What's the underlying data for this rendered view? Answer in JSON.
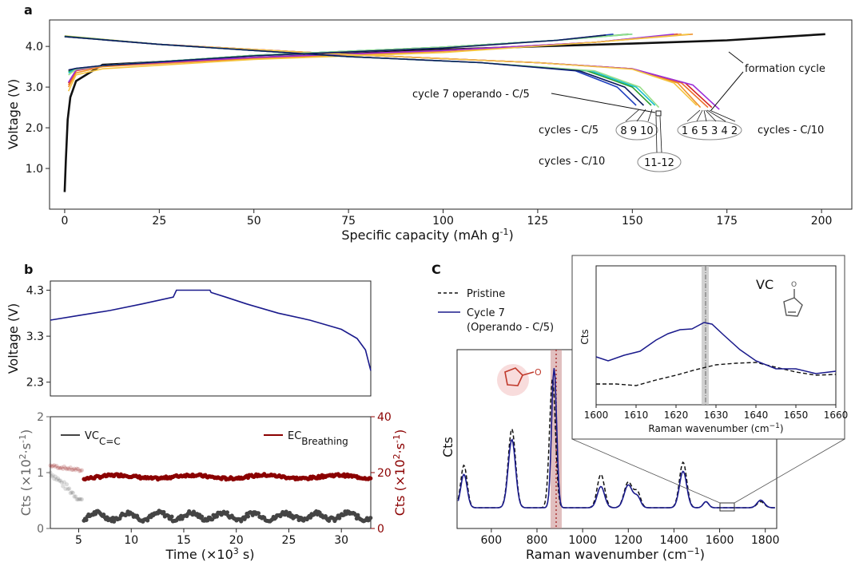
{
  "chart_data": [
    {
      "panel": "a",
      "type": "line",
      "xlabel": "Specific capacity (mAh g",
      "xlabel_sup": "-1",
      "xlabel_suffix": ")",
      "ylabel": "Voltage (V)",
      "xlim": [
        -4,
        208
      ],
      "ylim": [
        0.0,
        4.65
      ],
      "xticks": [
        0,
        25,
        50,
        75,
        100,
        125,
        150,
        175,
        200
      ],
      "yticks": [
        1.0,
        2.0,
        3.0,
        4.0
      ],
      "yticklabels": [
        "1.0",
        "2.0",
        "3.0",
        "4.0"
      ],
      "annotations": {
        "formation": "formation cycle",
        "operando": "cycle 7 operando - C/5",
        "c5_label": "cycles - C/5",
        "c5_nums": "8 9 10",
        "c10_label": "cycles - C/10",
        "c10_nums": "1 6 5 3 4 2",
        "c10b_label": "cycles - C/10",
        "c10b_nums": "11-12"
      },
      "series": [
        {
          "color": "#111111",
          "charge": [
            [
              0,
              0.42
            ],
            [
              0.3,
              1.2
            ],
            [
              0.8,
              2.2
            ],
            [
              1.5,
              2.75
            ],
            [
              3,
              3.15
            ],
            [
              10,
              3.55
            ],
            [
              25,
              3.62
            ],
            [
              50,
              3.72
            ],
            [
              75,
              3.82
            ],
            [
              100,
              3.92
            ],
            [
              125,
              4.0
            ],
            [
              150,
              4.07
            ],
            [
              175,
              4.15
            ],
            [
              201,
              4.3
            ]
          ],
          "discharge": []
        },
        {
          "color": "#f0932b",
          "charge": [
            [
              1,
              3.0
            ],
            [
              3,
              3.35
            ],
            [
              10,
              3.5
            ],
            [
              50,
              3.7
            ],
            [
              100,
              3.88
            ],
            [
              140,
              4.1
            ],
            [
              166,
              4.3
            ]
          ],
          "discharge": [
            [
              0,
              4.25
            ],
            [
              25,
              4.05
            ],
            [
              75,
              3.8
            ],
            [
              125,
              3.6
            ],
            [
              150,
              3.45
            ],
            [
              162,
              3.1
            ],
            [
              168,
              2.5
            ]
          ]
        },
        {
          "color": "#ec6f2b",
          "charge": [
            [
              1,
              3.05
            ],
            [
              3,
              3.4
            ],
            [
              10,
              3.52
            ],
            [
              50,
              3.72
            ],
            [
              100,
              3.9
            ],
            [
              140,
              4.1
            ],
            [
              163,
              4.3
            ]
          ],
          "discharge": [
            [
              0,
              4.25
            ],
            [
              25,
              4.05
            ],
            [
              75,
              3.8
            ],
            [
              125,
              3.6
            ],
            [
              150,
              3.45
            ],
            [
              163,
              3.1
            ],
            [
              170,
              2.5
            ]
          ]
        },
        {
          "color": "#d62728",
          "charge": [
            [
              1,
              3.1
            ],
            [
              3,
              3.42
            ],
            [
              10,
              3.53
            ],
            [
              50,
              3.73
            ],
            [
              100,
              3.9
            ],
            [
              140,
              4.1
            ],
            [
              162,
              4.3
            ]
          ],
          "discharge": [
            [
              0,
              4.24
            ],
            [
              25,
              4.05
            ],
            [
              75,
              3.8
            ],
            [
              125,
              3.6
            ],
            [
              150,
              3.45
            ],
            [
              164,
              3.1
            ],
            [
              171,
              2.5
            ]
          ]
        },
        {
          "color": "#9b30d9",
          "charge": [
            [
              1,
              3.12
            ],
            [
              3,
              3.42
            ],
            [
              10,
              3.53
            ],
            [
              50,
              3.73
            ],
            [
              100,
              3.9
            ],
            [
              140,
              4.1
            ],
            [
              161,
              4.3
            ]
          ],
          "discharge": [
            [
              0,
              4.24
            ],
            [
              25,
              4.05
            ],
            [
              75,
              3.8
            ],
            [
              125,
              3.6
            ],
            [
              150,
              3.45
            ],
            [
              166,
              3.05
            ],
            [
              173,
              2.45
            ]
          ]
        },
        {
          "color": "#f4c542",
          "charge": [
            [
              1,
              2.9
            ],
            [
              3,
              3.3
            ],
            [
              10,
              3.45
            ],
            [
              50,
              3.68
            ],
            [
              100,
              3.85
            ],
            [
              140,
              4.1
            ],
            [
              165,
              4.3
            ]
          ],
          "discharge": [
            [
              0,
              4.26
            ],
            [
              25,
              4.05
            ],
            [
              75,
              3.8
            ],
            [
              125,
              3.6
            ],
            [
              150,
              3.44
            ],
            [
              161,
              3.1
            ],
            [
              167,
              2.55
            ]
          ]
        },
        {
          "color": "#1f3fbf",
          "charge": [
            [
              1,
              3.4
            ],
            [
              3,
              3.46
            ],
            [
              10,
              3.53
            ],
            [
              50,
              3.78
            ],
            [
              100,
              3.98
            ],
            [
              130,
              4.15
            ],
            [
              145,
              4.3
            ]
          ],
          "discharge": [
            [
              0,
              4.25
            ],
            [
              25,
              4.05
            ],
            [
              75,
              3.75
            ],
            [
              110,
              3.6
            ],
            [
              135,
              3.4
            ],
            [
              146,
              3.0
            ],
            [
              151,
              2.55
            ]
          ]
        },
        {
          "color": "#2ca02c",
          "charge": [
            [
              1,
              3.38
            ],
            [
              3,
              3.45
            ],
            [
              10,
              3.53
            ],
            [
              50,
              3.78
            ],
            [
              100,
              3.98
            ],
            [
              130,
              4.15
            ],
            [
              149,
              4.3
            ]
          ],
          "discharge": [
            [
              0,
              4.25
            ],
            [
              25,
              4.05
            ],
            [
              75,
              3.75
            ],
            [
              110,
              3.6
            ],
            [
              138,
              3.4
            ],
            [
              150,
              3.0
            ],
            [
              155,
              2.55
            ]
          ]
        },
        {
          "color": "#17becf",
          "charge": [
            [
              1,
              3.35
            ],
            [
              3,
              3.45
            ],
            [
              10,
              3.53
            ],
            [
              50,
              3.78
            ],
            [
              100,
              3.98
            ],
            [
              130,
              4.15
            ],
            [
              150,
              4.3
            ]
          ],
          "discharge": [
            [
              0,
              4.24
            ],
            [
              25,
              4.05
            ],
            [
              75,
              3.75
            ],
            [
              110,
              3.6
            ],
            [
              139,
              3.4
            ],
            [
              151,
              3.0
            ],
            [
              156,
              2.55
            ]
          ]
        },
        {
          "color": "#98df8a",
          "charge": [
            [
              1,
              3.3
            ],
            [
              3,
              3.44
            ],
            [
              10,
              3.53
            ],
            [
              50,
              3.78
            ],
            [
              100,
              3.98
            ],
            [
              130,
              4.15
            ],
            [
              150,
              4.3
            ]
          ],
          "discharge": [
            [
              0,
              4.24
            ],
            [
              25,
              4.05
            ],
            [
              75,
              3.75
            ],
            [
              110,
              3.6
            ],
            [
              140,
              3.4
            ],
            [
              152,
              3.0
            ],
            [
              157,
              2.5
            ]
          ]
        },
        {
          "color": "#0b1a5e",
          "charge": [
            [
              1,
              3.42
            ],
            [
              3,
              3.46
            ],
            [
              10,
              3.53
            ],
            [
              50,
              3.77
            ],
            [
              100,
              3.96
            ],
            [
              130,
              4.15
            ],
            [
              143,
              4.28
            ]
          ],
          "discharge": [
            [
              0,
              4.24
            ],
            [
              25,
              4.05
            ],
            [
              75,
              3.75
            ],
            [
              110,
              3.6
            ],
            [
              136,
              3.4
            ],
            [
              148,
              3.0
            ],
            [
              153,
              2.55
            ]
          ]
        }
      ]
    },
    {
      "panel": "b-top",
      "type": "line",
      "ylabel": "Voltage (V)",
      "xlim": [
        2.3,
        32.8
      ],
      "ylim": [
        2.0,
        4.5
      ],
      "yticks": [
        2.3,
        3.3,
        4.3
      ],
      "yticklabels": [
        "2.3",
        "3.3",
        "4.3"
      ],
      "series": [
        {
          "color": "#1a1a8c",
          "points": [
            [
              2.3,
              3.65
            ],
            [
              5,
              3.75
            ],
            [
              8,
              3.86
            ],
            [
              11,
              4.0
            ],
            [
              14,
              4.15
            ],
            [
              14.3,
              4.3
            ],
            [
              17.5,
              4.3
            ],
            [
              17.6,
              4.25
            ],
            [
              19,
              4.15
            ],
            [
              21,
              4.0
            ],
            [
              24,
              3.8
            ],
            [
              27,
              3.65
            ],
            [
              30,
              3.45
            ],
            [
              31.5,
              3.25
            ],
            [
              32.3,
              3.0
            ],
            [
              32.8,
              2.55
            ]
          ]
        }
      ]
    },
    {
      "panel": "b-bottom",
      "type": "scatter",
      "xlabel": "Time (×10",
      "xlabel_sup": "3",
      "xlabel_suffix": " s)",
      "ylabel_left": "Cts (×10",
      "ylabel_left_sup": "2",
      "ylabel_left_mid": "·s",
      "ylabel_left_sup2": "-1",
      "ylabel_left_suffix": ")",
      "ylabel_right": "Cts (×10",
      "xlim": [
        2.3,
        32.8
      ],
      "xticks": [
        5,
        10,
        15,
        20,
        25,
        30
      ],
      "ylim_left": [
        0,
        2
      ],
      "yticks_left": [
        0,
        1,
        2
      ],
      "ylim_right": [
        0,
        40
      ],
      "yticks_right": [
        0,
        20,
        40
      ],
      "legend": {
        "vc": "VC",
        "vc_sub": "C=C",
        "ec": "EC",
        "ec_sub": "Breathing"
      },
      "vc_color": "#444444",
      "ec_color": "#8b0000",
      "vc_level": 0.22,
      "ec_level": 18.5
    },
    {
      "panel": "C",
      "type": "line",
      "xlabel": "Raman wavenumber (cm",
      "xlabel_sup": "−1",
      "xlabel_suffix": ")",
      "ylabel": "Cts",
      "xlim": [
        450,
        1850
      ],
      "xticks": [
        600,
        800,
        1000,
        1200,
        1400,
        1600,
        1800
      ],
      "legend": [
        "Pristine",
        "Cycle 7",
        "(Operando - C/5)"
      ],
      "highlight": 875,
      "inset": {
        "xlabel": "Raman wavenumber (cm",
        "xlabel_sup": "−1",
        "xlabel_suffix": ")",
        "ylabel": "Cts",
        "xlim": [
          1600,
          1660
        ],
        "xticks": [
          1600,
          1610,
          1620,
          1630,
          1640,
          1650,
          1660
        ],
        "highlight": 1627.5,
        "molecule": "VC"
      }
    }
  ]
}
